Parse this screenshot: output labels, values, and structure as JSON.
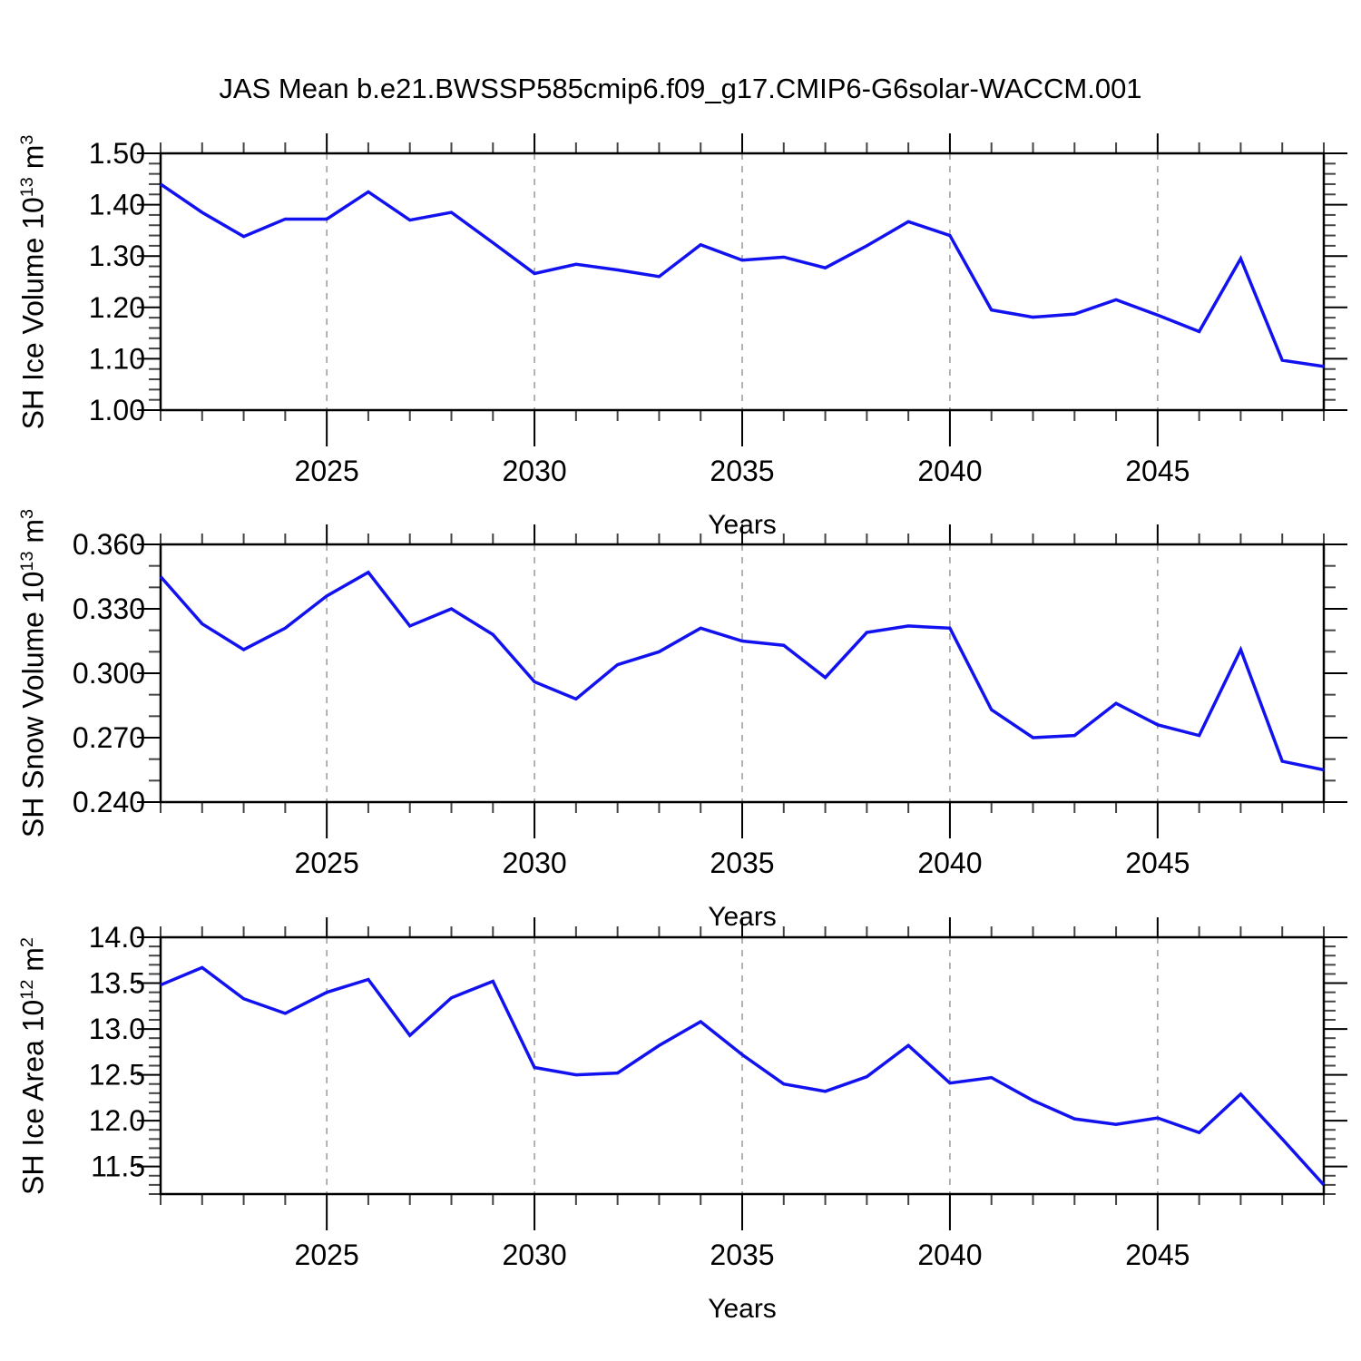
{
  "page": {
    "title": "JAS Mean b.e21.BWSSP585cmip6.f09_g17.CMIP6-G6solar-WACCM.001",
    "background": "#ffffff"
  },
  "colors": {
    "line": "#1212F0",
    "grid": "#999999",
    "frame": "#000000",
    "minor_tick": "#444444",
    "text": "#000000"
  },
  "years": [
    2021,
    2022,
    2023,
    2024,
    2025,
    2026,
    2027,
    2028,
    2029,
    2030,
    2031,
    2032,
    2033,
    2034,
    2035,
    2036,
    2037,
    2038,
    2039,
    2040,
    2041,
    2042,
    2043,
    2044,
    2045,
    2046,
    2047,
    2048,
    2049
  ],
  "x_axis": {
    "label": "Years",
    "range": [
      2021,
      2049
    ],
    "major_ticks": [
      2025,
      2030,
      2035,
      2040,
      2045
    ],
    "major_tick_labels": [
      "2025",
      "2030",
      "2035",
      "2040",
      "2045"
    ],
    "minor_step": 1,
    "grid": "dashed-vertical"
  },
  "chart_data": [
    {
      "type": "line",
      "name": "sh-ice-volume",
      "ylabel": "SH Ice Volume 10¹³ m³",
      "ylabel_parts": [
        {
          "t": "SH Ice Volume 10"
        },
        {
          "t": "13",
          "sup": true
        },
        {
          "t": " m"
        },
        {
          "t": "3",
          "sup": true
        }
      ],
      "xlabel": "Years",
      "ylim": [
        1.0,
        1.5
      ],
      "ytick_values": [
        1.0,
        1.1,
        1.2,
        1.3,
        1.4,
        1.5
      ],
      "ytick_labels": [
        "1.00",
        "1.10",
        "1.20",
        "1.30",
        "1.40",
        "1.50"
      ],
      "y_minor_step": 0.02,
      "values": [
        1.44,
        1.385,
        1.338,
        1.372,
        1.372,
        1.425,
        1.37,
        1.385,
        1.326,
        1.266,
        1.284,
        1.273,
        1.26,
        1.322,
        1.292,
        1.298,
        1.277,
        1.32,
        1.367,
        1.34,
        1.195,
        1.181,
        1.187,
        1.215,
        1.185,
        1.153,
        1.295,
        1.097,
        1.085
      ]
    },
    {
      "type": "line",
      "name": "sh-snow-volume",
      "ylabel": "SH Snow Volume 10¹³ m³",
      "ylabel_parts": [
        {
          "t": "SH Snow Volume 10"
        },
        {
          "t": "13",
          "sup": true
        },
        {
          "t": " m"
        },
        {
          "t": "3",
          "sup": true
        }
      ],
      "xlabel": "Years",
      "ylim": [
        0.24,
        0.36
      ],
      "ytick_values": [
        0.24,
        0.27,
        0.3,
        0.33,
        0.36
      ],
      "ytick_labels": [
        "0.240",
        "0.270",
        "0.300",
        "0.330",
        "0.360"
      ],
      "y_minor_step": 0.01,
      "values": [
        0.345,
        0.323,
        0.311,
        0.321,
        0.336,
        0.347,
        0.322,
        0.33,
        0.318,
        0.296,
        0.288,
        0.304,
        0.31,
        0.321,
        0.315,
        0.313,
        0.298,
        0.319,
        0.322,
        0.321,
        0.283,
        0.27,
        0.271,
        0.286,
        0.276,
        0.271,
        0.311,
        0.259,
        0.255
      ]
    },
    {
      "type": "line",
      "name": "sh-ice-area",
      "ylabel": "SH Ice Area 10¹² m²",
      "ylabel_parts": [
        {
          "t": "SH Ice Area 10"
        },
        {
          "t": "12",
          "sup": true
        },
        {
          "t": " m"
        },
        {
          "t": "2",
          "sup": true
        }
      ],
      "xlabel": "Years",
      "ylim": [
        11.2,
        14.0
      ],
      "ytick_values": [
        11.5,
        12.0,
        12.5,
        13.0,
        13.5,
        14.0
      ],
      "ytick_labels": [
        "11.5",
        "12.0",
        "12.5",
        "13.0",
        "13.5",
        "14.0"
      ],
      "y_minor_step": 0.1,
      "values": [
        13.48,
        13.67,
        13.33,
        13.17,
        13.4,
        13.54,
        12.93,
        13.34,
        13.52,
        12.58,
        12.5,
        12.52,
        12.82,
        13.08,
        12.72,
        12.4,
        12.32,
        12.48,
        12.82,
        12.41,
        12.47,
        12.22,
        12.02,
        11.96,
        12.03,
        11.87,
        12.29,
        11.8,
        11.3
      ]
    }
  ]
}
